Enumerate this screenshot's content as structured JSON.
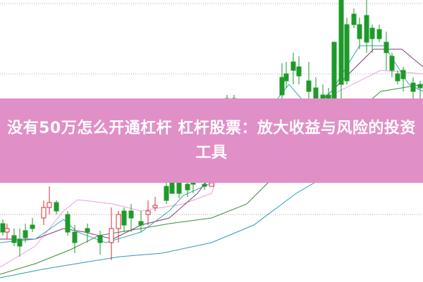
{
  "title": "没有50万怎么开通杠杆 杠杆股票：放大收益与风险的投资工具",
  "colors": {
    "banner": "#e18fc7",
    "up": "#d0303a",
    "down": "#1e9a2a",
    "ma5": "#3aa6b0",
    "ma10": "#7a3a78",
    "ma20": "#e7a0e0",
    "ma30": "#3a8a3a",
    "ma60": "#2a9ab0"
  },
  "background_chart": "candlestick-chart"
}
